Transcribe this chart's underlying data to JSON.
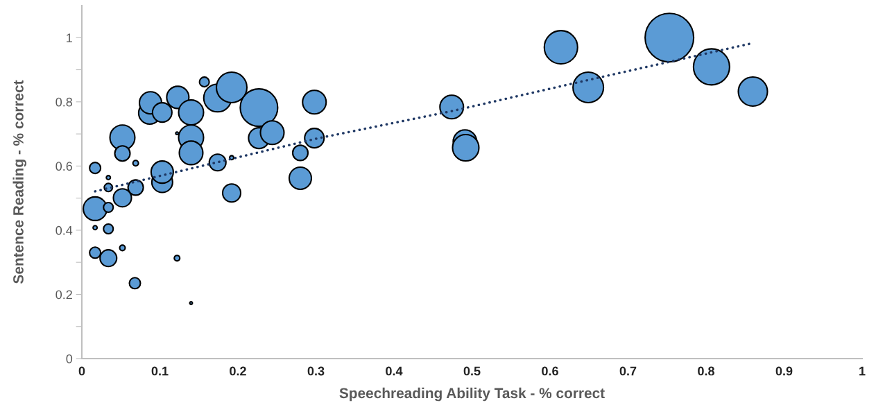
{
  "chart_data": {
    "type": "bubble",
    "xlabel": "Speechreading Ability Task - % correct",
    "ylabel": "Sentence Reading - % correct",
    "xlim": [
      0,
      1
    ],
    "ylim": [
      0,
      1.1
    ],
    "xticks": [
      0,
      0.1,
      0.2,
      0.3,
      0.4,
      0.5,
      0.6,
      0.7,
      0.8,
      0.9,
      1
    ],
    "yticks": [
      0,
      {
        "value": 0.1,
        "label": null
      },
      0.2,
      {
        "value": 0.3,
        "label": null
      },
      0.4,
      {
        "value": 0.5,
        "label": null
      },
      0.6,
      {
        "value": 0.7,
        "label": null
      },
      0.8,
      {
        "value": 0.9,
        "label": null
      },
      1
    ],
    "grid": false,
    "legend": false,
    "series": [
      {
        "color": "#5b9bd5",
        "x": [
          0.017,
          0.017,
          0.017,
          0.017,
          0.034,
          0.034,
          0.034,
          0.034,
          0.034,
          0.052,
          0.052,
          0.052,
          0.052,
          0.069,
          0.069,
          0.068,
          0.087,
          0.088,
          0.103,
          0.103,
          0.103,
          0.123,
          0.122,
          0.122,
          0.14,
          0.14,
          0.14,
          0.14,
          0.157,
          0.174,
          0.174,
          0.192,
          0.192,
          0.192,
          0.227,
          0.227,
          0.244,
          0.28,
          0.28,
          0.298,
          0.298,
          0.474,
          0.491,
          0.492,
          0.614,
          0.649,
          0.753,
          0.807,
          0.86
        ],
        "values": [
          0.594,
          0.467,
          0.408,
          0.33,
          0.404,
          0.313,
          0.471,
          0.564,
          0.533,
          0.689,
          0.639,
          0.501,
          0.345,
          0.609,
          0.533,
          0.235,
          0.765,
          0.797,
          0.767,
          0.55,
          0.581,
          0.814,
          0.702,
          0.313,
          0.767,
          0.689,
          0.641,
          0.173,
          0.862,
          0.812,
          0.611,
          0.845,
          0.626,
          0.516,
          0.782,
          0.687,
          0.704,
          0.641,
          0.562,
          0.799,
          0.687,
          0.784,
          0.676,
          0.657,
          0.97,
          0.845,
          1.0,
          0.909,
          0.832
        ],
        "sizes": [
          0.052,
          0.236,
          0.007,
          0.052,
          0.04,
          0.118,
          0.04,
          0.007,
          0.029,
          0.264,
          0.099,
          0.138,
          0.013,
          0.013,
          0.099,
          0.052,
          0.209,
          0.209,
          0.16,
          0.184,
          0.209,
          0.209,
          0.003,
          0.013,
          0.264,
          0.264,
          0.236,
          0.003,
          0.04,
          0.327,
          0.118,
          0.395,
          0.007,
          0.138,
          0.595,
          0.184,
          0.236,
          0.099,
          0.209,
          0.236,
          0.16,
          0.236,
          0.236,
          0.295,
          0.47,
          0.395,
          1,
          0.552,
          0.36
        ]
      },
      {
        "type": "line",
        "color": "#1f3864",
        "line_style": "dotted",
        "marker": "none",
        "x": [
          0.017,
          0.3,
          0.474,
          0.649,
          0.86
        ],
        "values": [
          0.521,
          0.685,
          0.771,
          0.868,
          0.983
        ]
      }
    ]
  }
}
